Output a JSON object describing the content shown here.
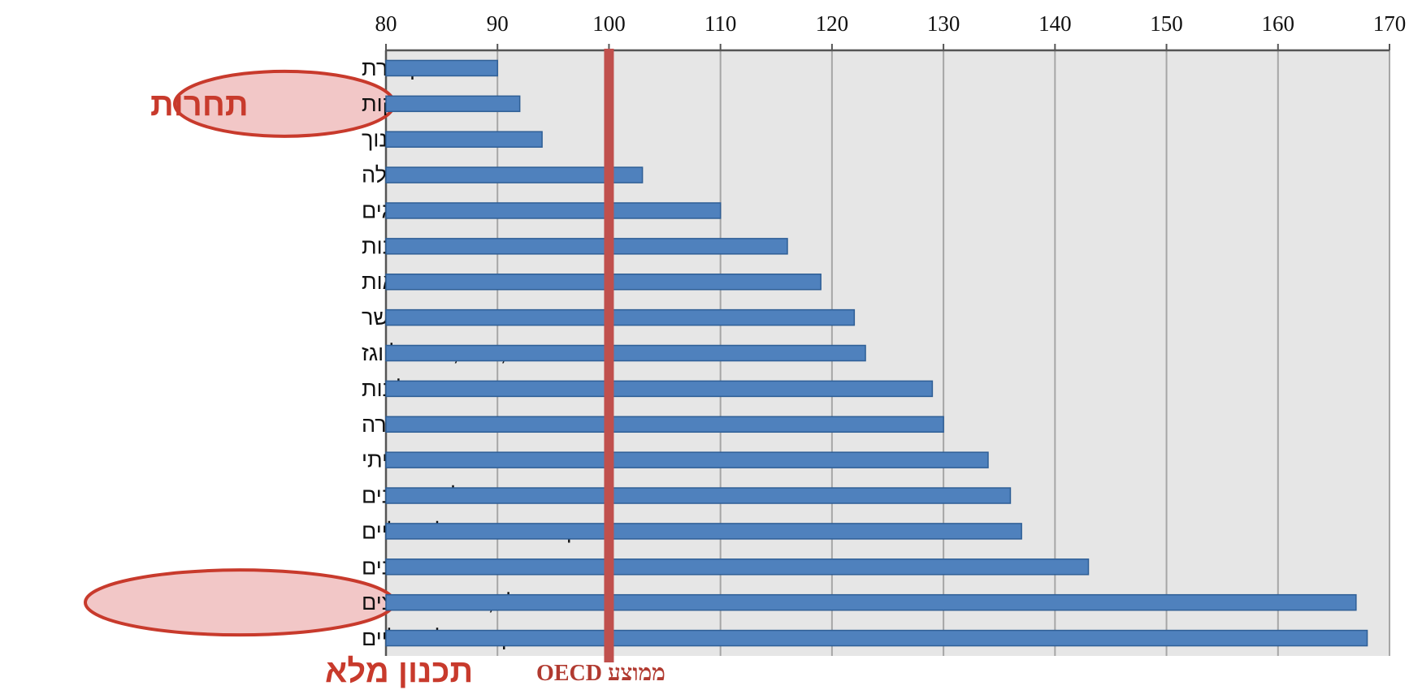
{
  "chart_data": {
    "type": "bar",
    "orientation": "horizontal",
    "categories": [
      "תקשורת",
      "פירות וירקות",
      "חינוך",
      "בגדים והנעלה",
      "דגים",
      "פנאי ותרבות",
      "בריאות",
      "בשר",
      "דיור, מים, חשמל וגז",
      "מסעדות ומלונות",
      "תחבורה",
      "ריהוט וציוד ביתי",
      "לחם ודגנים",
      "משקאות שאינם אלכוהוליים",
      "שמנים",
      "חלב, גבינות וביצים",
      "משקאות אלכוהוליים"
    ],
    "values": [
      90,
      92,
      94,
      103,
      110,
      116,
      119,
      122,
      123,
      129,
      130,
      134,
      136,
      137,
      143,
      167,
      168
    ],
    "xlim": [
      80,
      170
    ],
    "x_ticks": [
      "80",
      "90",
      "100",
      "110",
      "120",
      "130",
      "140",
      "150",
      "160",
      "170"
    ],
    "x_axis_position": "top",
    "grid": true,
    "reference_line": {
      "value": 100,
      "label": "ממוצע OECD",
      "color": "#c0504d"
    },
    "highlighted_categories": [
      "פירות וירקות",
      "חלב, גבינות וביצים"
    ],
    "annotations": [
      {
        "text": "תחרות",
        "points_to": "פירות וירקות"
      },
      {
        "text": "תכנון מלא",
        "points_to": "חלב, גבינות וביצים"
      }
    ],
    "colors": {
      "bar": "#4f81bd",
      "bar_edge": "#2f5f96",
      "plot_bg": "#e6e6e6",
      "grid": "#a6a6a6",
      "highlight_fill": "#f2c7c7",
      "highlight_stroke": "#c83a2c",
      "annotation": "#c83a2c"
    }
  }
}
